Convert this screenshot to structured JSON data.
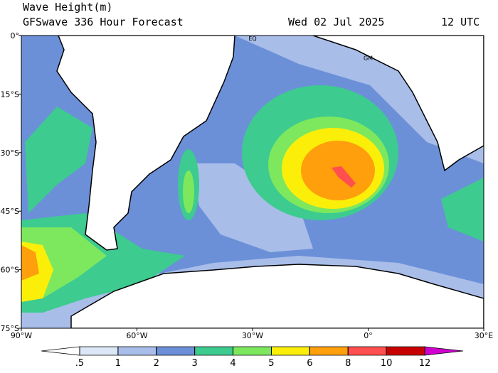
{
  "header": {
    "title": "Wave Height(m)",
    "subtitle": "GFSwave 336 Hour Forecast",
    "date": "Wed 02 Jul 2025",
    "time": "12 UTC"
  },
  "map": {
    "lonlim": [
      -90,
      30
    ],
    "latlim": [
      0,
      -75
    ],
    "lat_ticks": [
      {
        "value": 0,
        "label": "0°"
      },
      {
        "value": -15,
        "label": "15°S"
      },
      {
        "value": -30,
        "label": "30°S"
      },
      {
        "value": -45,
        "label": "45°S"
      },
      {
        "value": -60,
        "label": "60°S"
      },
      {
        "value": -75,
        "label": "75°S"
      }
    ],
    "lon_ticks": [
      {
        "value": -90,
        "label": "90°W"
      },
      {
        "value": -60,
        "label": "60°W"
      },
      {
        "value": -30,
        "label": "30°W"
      },
      {
        "value": 0,
        "label": "0°"
      },
      {
        "value": 30,
        "label": "30°E"
      }
    ],
    "annotations": [
      {
        "text": "EQ",
        "lon": -30,
        "lat": 0
      },
      {
        "text": "GM",
        "lon": 0,
        "lat": -5
      }
    ]
  },
  "colorbar": {
    "levels": [
      {
        "value": 0.5,
        "label": ".5"
      },
      1,
      2,
      3,
      4,
      5,
      6,
      8,
      10,
      12
    ],
    "colors": [
      "#ffffff",
      "#dbe6f6",
      "#a9bde9",
      "#6b90d8",
      "#3dcb8f",
      "#7de85e",
      "#fbef0a",
      "#ff9f0c",
      "#ff4f4f",
      "#c70000",
      "#d000d0"
    ]
  }
}
